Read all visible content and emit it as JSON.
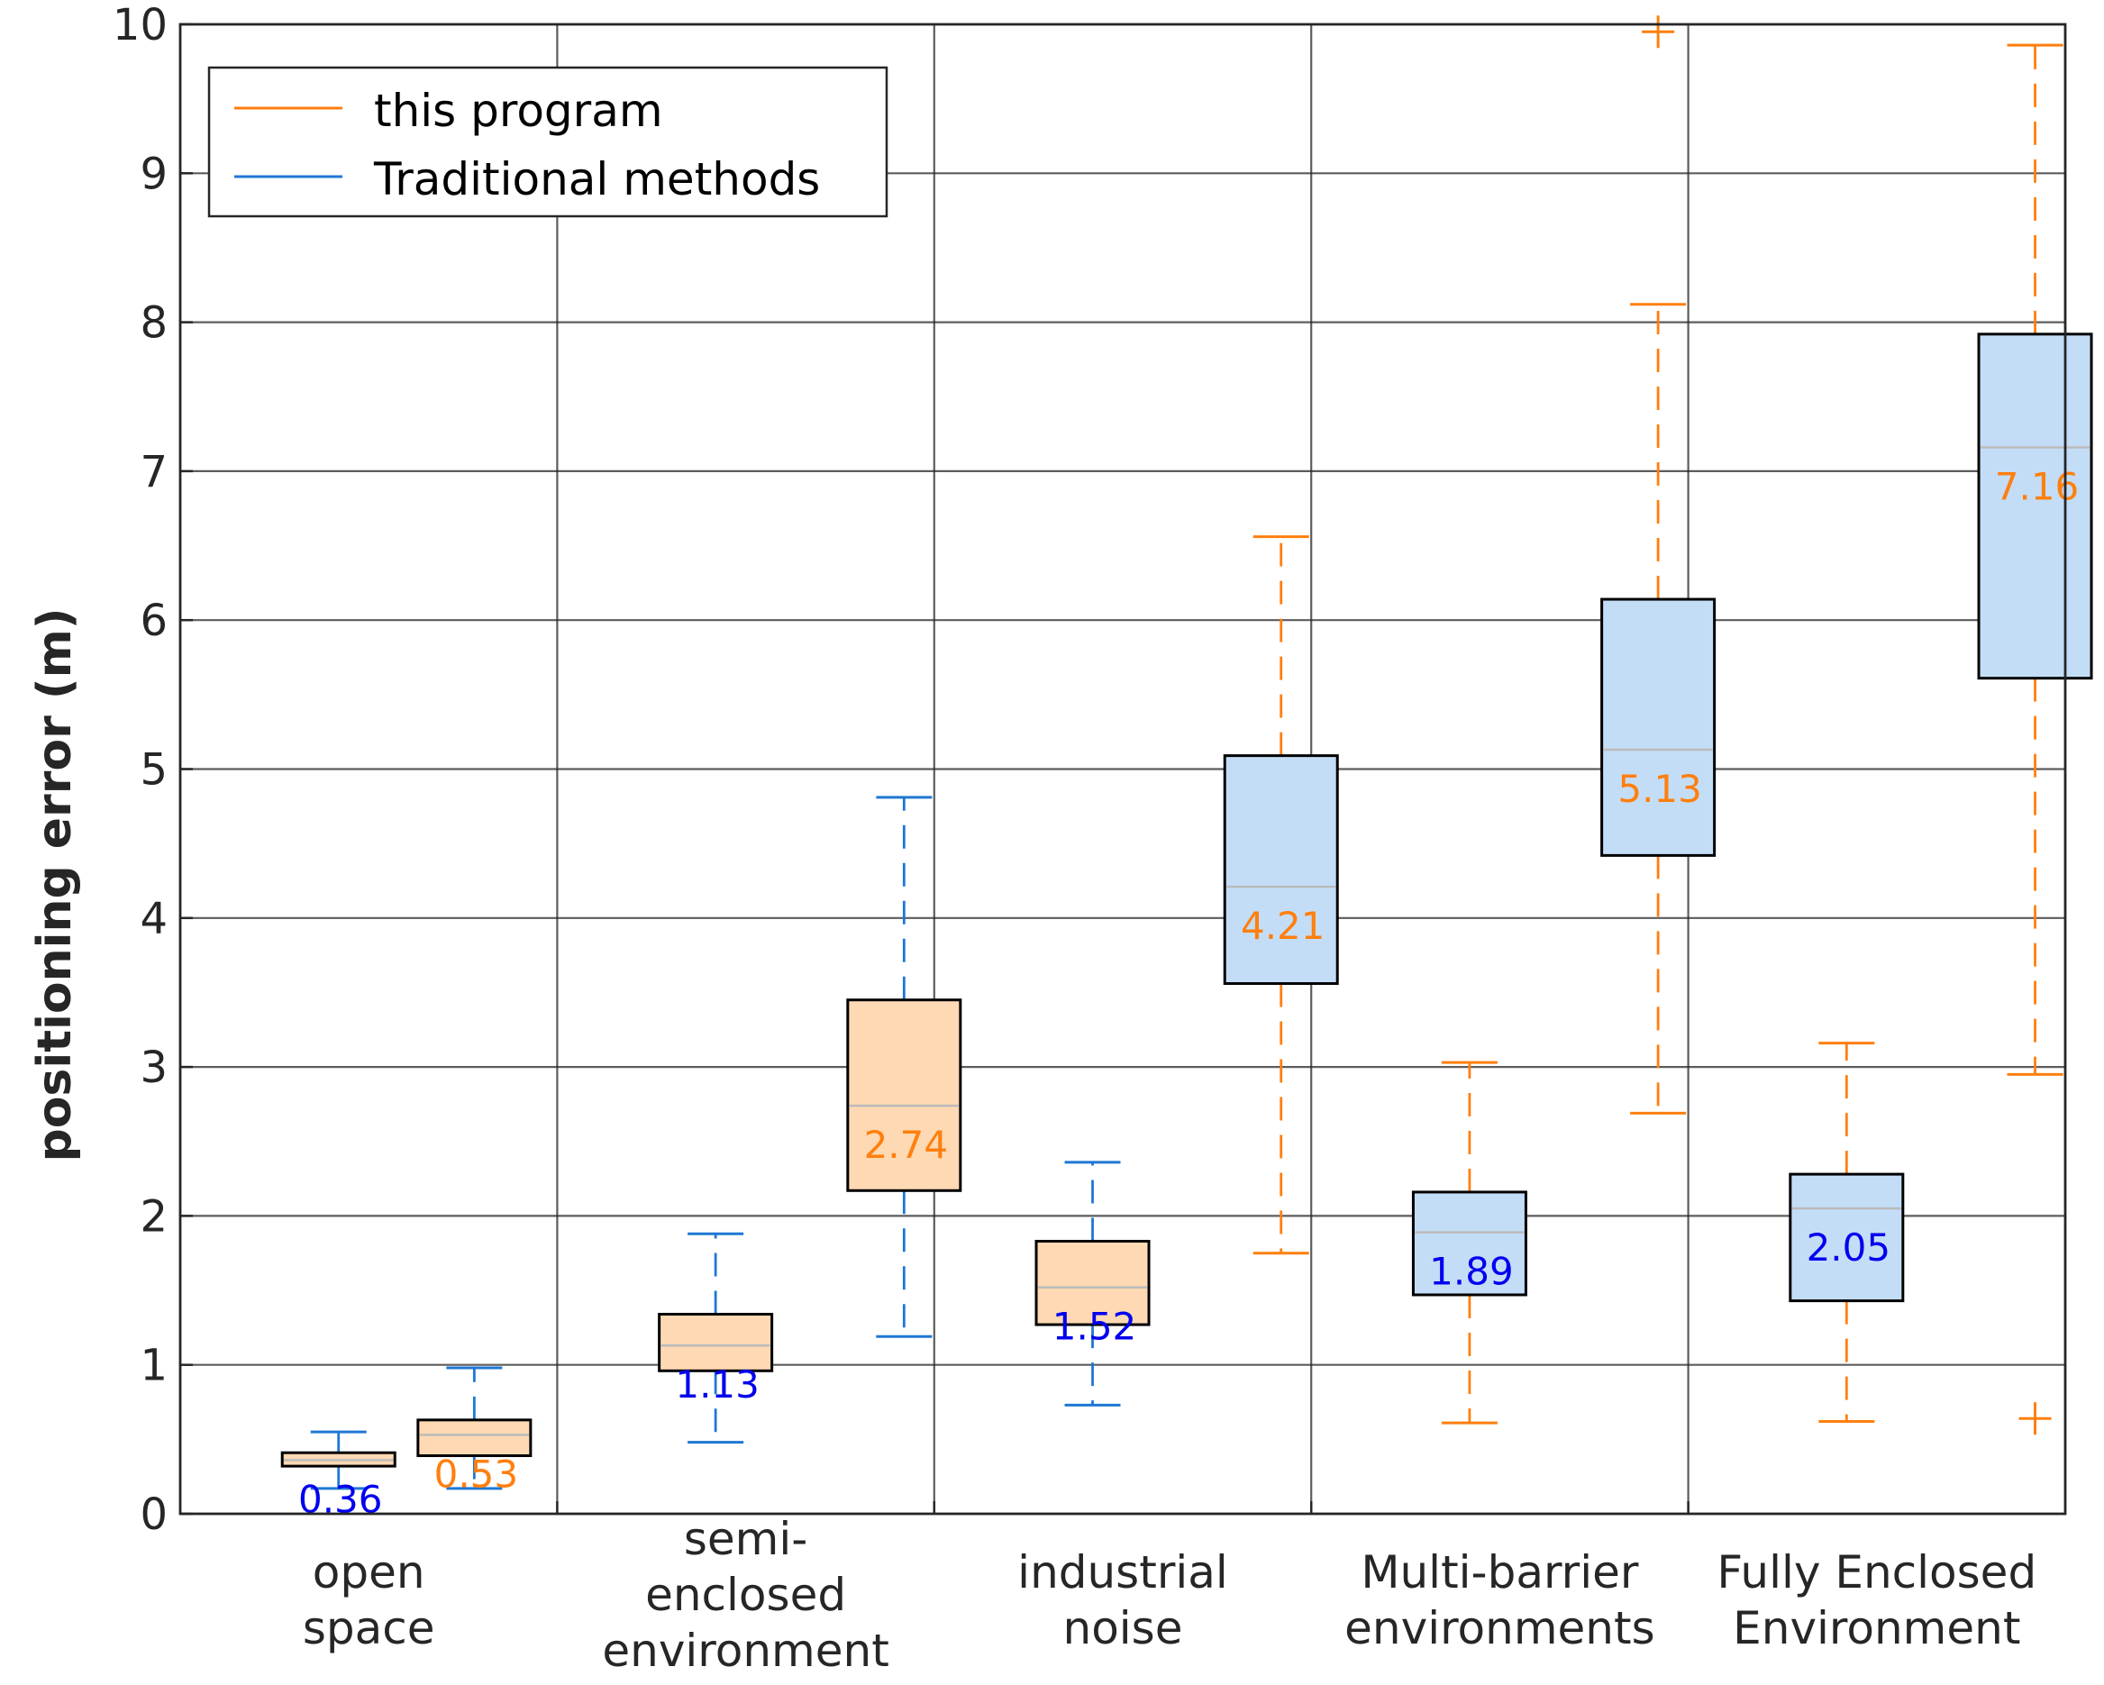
{
  "chart_data": {
    "type": "box",
    "title": "",
    "xlabel": "",
    "ylabel": "positioning error (m)",
    "ylim": [
      0,
      10
    ],
    "yticks": [
      "0",
      "1",
      "2",
      "3",
      "4",
      "5",
      "6",
      "7",
      "8",
      "9",
      "10"
    ],
    "grid": true,
    "legend_position": "top-left",
    "colors": {
      "this_program": "#ff7f0e",
      "traditional": "#1f77d4",
      "orange_fill": "#ffd9b3",
      "blue_fill": "#c4ddf7",
      "blue_label": "#0000ee",
      "orange_label": "#ff7f0e",
      "grid": "#262626",
      "median_line": "#bbbbbb"
    },
    "legend": [
      {
        "name": "this program",
        "color": "#ff7f0e"
      },
      {
        "name": "Traditional methods",
        "color": "#1f77d4"
      }
    ],
    "categories": [
      {
        "lines": [
          "open",
          "space"
        ]
      },
      {
        "lines": [
          "semi-",
          "enclosed",
          "environment"
        ]
      },
      {
        "lines": [
          "industrial",
          "noise"
        ]
      },
      {
        "lines": [
          "Multi-barrier",
          "environments"
        ]
      },
      {
        "lines": [
          "Fully Enclosed",
          "Environment"
        ]
      }
    ],
    "boxes": [
      {
        "pos": 0.42,
        "fill": "orange",
        "whisker": "blue",
        "q1": 0.32,
        "q3": 0.41,
        "median": 0.36,
        "low": 0.17,
        "high": 0.55,
        "label": "0.36",
        "label_color": "blue",
        "outliers": []
      },
      {
        "pos": 0.78,
        "fill": "orange",
        "whisker": "blue",
        "q1": 0.39,
        "q3": 0.63,
        "median": 0.53,
        "low": 0.17,
        "high": 0.98,
        "label": "0.53",
        "label_color": "orange",
        "outliers": []
      },
      {
        "pos": 1.42,
        "fill": "orange",
        "whisker": "blue",
        "q1": 0.96,
        "q3": 1.34,
        "median": 1.13,
        "low": 0.48,
        "high": 1.88,
        "label": "1.13",
        "label_color": "blue",
        "outliers": []
      },
      {
        "pos": 1.92,
        "fill": "orange",
        "whisker": "blue",
        "q1": 2.17,
        "q3": 3.45,
        "median": 2.74,
        "low": 1.19,
        "high": 4.81,
        "label": "2.74",
        "label_color": "orange",
        "outliers": []
      },
      {
        "pos": 2.42,
        "fill": "orange",
        "whisker": "blue",
        "q1": 1.27,
        "q3": 1.83,
        "median": 1.52,
        "low": 0.73,
        "high": 2.36,
        "label": "1.52",
        "label_color": "blue",
        "outliers": []
      },
      {
        "pos": 2.92,
        "fill": "blue",
        "whisker": "orange",
        "q1": 3.56,
        "q3": 5.09,
        "median": 4.21,
        "low": 1.75,
        "high": 6.56,
        "label": "4.21",
        "label_color": "orange",
        "outliers": []
      },
      {
        "pos": 3.42,
        "fill": "blue",
        "whisker": "orange",
        "q1": 1.47,
        "q3": 2.16,
        "median": 1.89,
        "low": 0.61,
        "high": 3.03,
        "label": "1.89",
        "label_color": "blue",
        "outliers": []
      },
      {
        "pos": 3.92,
        "fill": "blue",
        "whisker": "orange",
        "q1": 4.42,
        "q3": 6.14,
        "median": 5.13,
        "low": 2.69,
        "high": 8.12,
        "label": "5.13",
        "label_color": "orange",
        "outliers": [
          9.95
        ]
      },
      {
        "pos": 4.42,
        "fill": "blue",
        "whisker": "orange",
        "q1": 1.43,
        "q3": 2.28,
        "median": 2.05,
        "low": 0.62,
        "high": 3.16,
        "label": "2.05",
        "label_color": "blue",
        "outliers": []
      },
      {
        "pos": 4.92,
        "fill": "blue",
        "whisker": "orange",
        "q1": 5.61,
        "q3": 7.92,
        "median": 7.16,
        "low": 2.95,
        "high": 9.86,
        "label": "7.16",
        "label_color": "orange",
        "outliers": [
          0.64
        ]
      }
    ]
  }
}
